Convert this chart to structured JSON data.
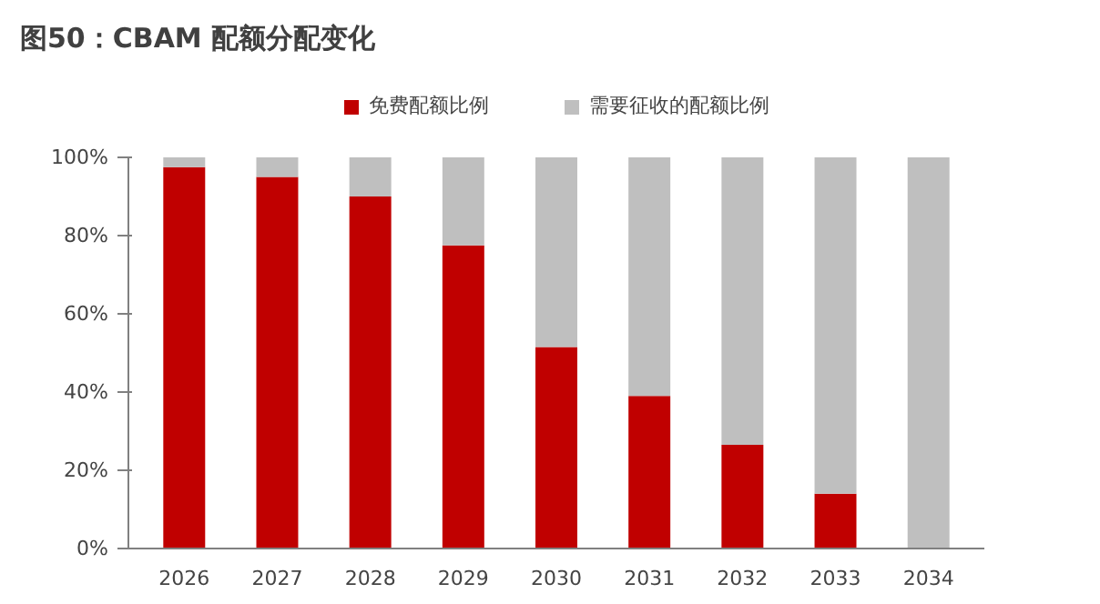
{
  "chart_data": {
    "type": "bar",
    "title": "图50：CBAM 配额分配变化",
    "stacked": true,
    "categories": [
      "2026",
      "2027",
      "2028",
      "2029",
      "2030",
      "2031",
      "2032",
      "2033",
      "2034"
    ],
    "series": [
      {
        "name": "免费配额比例",
        "color": "#c00000",
        "values": [
          97.5,
          95,
          90,
          77.5,
          51.5,
          39,
          26.5,
          14,
          0
        ]
      },
      {
        "name": "需要征收的配额比例",
        "color": "#bfbfbf",
        "values": [
          2.5,
          5,
          10,
          22.5,
          48.5,
          61,
          73.5,
          86,
          100
        ]
      }
    ],
    "ylim": [
      0,
      100
    ],
    "yticks": [
      {
        "value": 0,
        "label": "0%"
      },
      {
        "value": 20,
        "label": "20%"
      },
      {
        "value": 40,
        "label": "40%"
      },
      {
        "value": 60,
        "label": "60%"
      },
      {
        "value": 80,
        "label": "80%"
      },
      {
        "value": 100,
        "label": "100%"
      }
    ],
    "grid": false,
    "legend": "top"
  }
}
